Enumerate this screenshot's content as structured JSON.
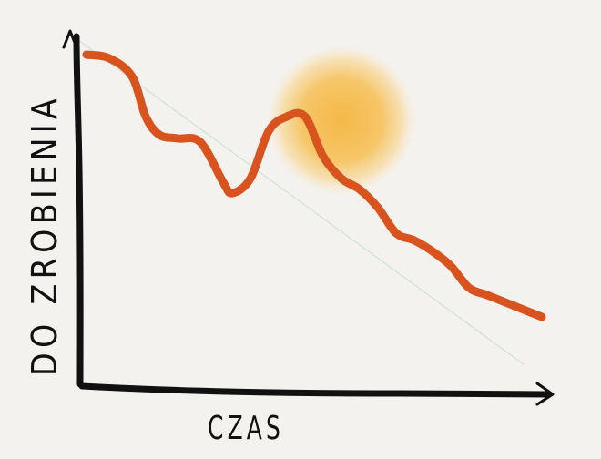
{
  "chart_data": {
    "type": "line",
    "title": "",
    "xlabel": "CZAS",
    "ylabel": "DO ZROBIENIA",
    "grid": false,
    "legend": "none",
    "xlim": [
      0,
      100
    ],
    "ylim": [
      0,
      100
    ],
    "series": [
      {
        "color": "#d9531e",
        "x": [
          0,
          5,
          10,
          13,
          16,
          20,
          25,
          30,
          32,
          36,
          40,
          44,
          48,
          52,
          56,
          60,
          64,
          68,
          72,
          76,
          80,
          84,
          88,
          92,
          96,
          100
        ],
        "y": [
          90,
          89,
          84,
          73,
          68,
          67,
          66,
          55,
          52,
          56,
          69,
          73,
          73,
          62,
          56,
          53,
          48,
          41,
          39,
          36,
          32,
          26,
          24,
          22,
          20,
          18
        ]
      },
      {
        "color": "#cfe0dc",
        "x": [
          -4,
          96
        ],
        "y": [
          96,
          5
        ]
      }
    ],
    "annotations": [
      {
        "type": "sun-glow",
        "x": 56,
        "y": 72,
        "color": "#f5b53e"
      }
    ]
  }
}
